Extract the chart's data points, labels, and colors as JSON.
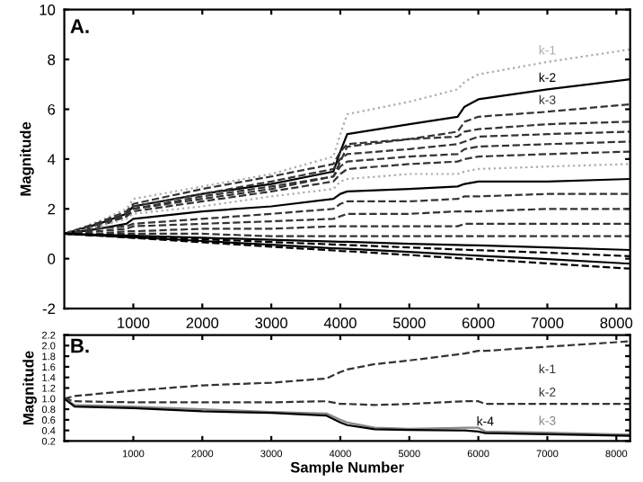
{
  "chart_data": [
    {
      "type": "line",
      "title": "A.",
      "ylabel": "Magnitude",
      "xlim": [
        0,
        8200
      ],
      "ylim": [
        -2,
        10
      ],
      "xticks": [
        1000,
        2000,
        3000,
        4000,
        5000,
        6000,
        7000,
        8000
      ],
      "yticks": [
        -2,
        0,
        2,
        4,
        6,
        8,
        10
      ],
      "grid": false,
      "legend": false,
      "x": [
        0,
        500,
        900,
        1000,
        2000,
        3000,
        3900,
        4000,
        4100,
        5000,
        5700,
        5800,
        6000,
        7000,
        8192
      ],
      "series": [
        {
          "name": "k-1",
          "color": "#aaaaaa",
          "line_style": "dotted",
          "values": [
            1.0,
            1.5,
            2.0,
            2.4,
            2.9,
            3.4,
            4.1,
            5.0,
            5.8,
            6.3,
            6.8,
            7.1,
            7.4,
            7.9,
            8.4
          ]
        },
        {
          "name": "k-2",
          "color": "#000000",
          "line_style": "solid",
          "values": [
            1.0,
            1.4,
            1.8,
            2.1,
            2.6,
            3.0,
            3.5,
            4.3,
            5.0,
            5.4,
            5.7,
            6.1,
            6.4,
            6.8,
            7.2
          ]
        },
        {
          "name": "k-3",
          "color": "#333333",
          "line_style": "dashed",
          "values": [
            1.0,
            1.3,
            1.7,
            2.0,
            2.4,
            2.8,
            3.3,
            3.9,
            4.5,
            4.8,
            5.1,
            5.5,
            5.7,
            5.9,
            6.2
          ]
        },
        {
          "color": "#333333",
          "line_style": "dashed",
          "values": [
            1.0,
            1.45,
            1.9,
            2.2,
            2.8,
            3.3,
            3.8,
            4.3,
            4.6,
            4.8,
            4.9,
            5.1,
            5.2,
            5.4,
            5.5
          ]
        },
        {
          "color": "#333333",
          "line_style": "dashed",
          "values": [
            1.0,
            1.4,
            1.8,
            2.1,
            2.6,
            3.1,
            3.6,
            4.0,
            4.2,
            4.4,
            4.6,
            4.7,
            4.9,
            5.0,
            5.1
          ]
        },
        {
          "color": "#333333",
          "line_style": "dashed",
          "values": [
            1.0,
            1.4,
            1.7,
            2.0,
            2.5,
            2.9,
            3.3,
            3.7,
            3.9,
            4.1,
            4.2,
            4.4,
            4.5,
            4.6,
            4.7
          ]
        },
        {
          "color": "#333333",
          "line_style": "dashed",
          "values": [
            1.0,
            1.3,
            1.7,
            1.9,
            2.3,
            2.7,
            3.1,
            3.4,
            3.6,
            3.8,
            3.9,
            4.0,
            4.1,
            4.2,
            4.3
          ]
        },
        {
          "color": "#aaaaaa",
          "line_style": "dotted",
          "values": [
            1.0,
            1.3,
            1.6,
            1.8,
            2.1,
            2.5,
            2.8,
            3.1,
            3.2,
            3.4,
            3.4,
            3.5,
            3.6,
            3.7,
            3.8
          ]
        },
        {
          "color": "#000000",
          "line_style": "solid",
          "values": [
            1.0,
            1.2,
            1.4,
            1.6,
            1.9,
            2.1,
            2.4,
            2.6,
            2.7,
            2.8,
            2.9,
            3.0,
            3.1,
            3.1,
            3.2
          ]
        },
        {
          "color": "#333333",
          "line_style": "dashed",
          "values": [
            1.0,
            1.2,
            1.3,
            1.4,
            1.6,
            1.8,
            2.0,
            2.2,
            2.3,
            2.3,
            2.4,
            2.5,
            2.5,
            2.6,
            2.6
          ]
        },
        {
          "color": "#333333",
          "line_style": "dashed",
          "values": [
            1.0,
            1.1,
            1.2,
            1.3,
            1.4,
            1.5,
            1.6,
            1.7,
            1.8,
            1.8,
            1.9,
            1.9,
            1.9,
            2.0,
            2.0
          ]
        },
        {
          "color": "#333333",
          "line_style": "dashed",
          "values": [
            1.0,
            1.0,
            1.1,
            1.1,
            1.2,
            1.2,
            1.3,
            1.3,
            1.3,
            1.3,
            1.3,
            1.4,
            1.4,
            1.4,
            1.4
          ]
        },
        {
          "color": "#333333",
          "line_style": "dashed",
          "values": [
            1.0,
            1.0,
            1.0,
            1.0,
            1.0,
            0.9,
            0.9,
            0.9,
            0.9,
            0.9,
            0.9,
            0.9,
            0.9,
            0.9,
            0.9
          ]
        },
        {
          "color": "#000000",
          "line_style": "solid",
          "values": [
            1.0,
            0.96,
            0.93,
            0.92,
            0.84,
            0.76,
            0.69,
            0.68,
            0.68,
            0.6,
            0.55,
            0.54,
            0.53,
            0.45,
            0.35
          ]
        },
        {
          "color": "#000000",
          "line_style": "dashed",
          "values": [
            1.0,
            0.95,
            0.9,
            0.89,
            0.78,
            0.67,
            0.57,
            0.56,
            0.55,
            0.45,
            0.37,
            0.36,
            0.34,
            0.24,
            0.1
          ]
        },
        {
          "color": "#000000",
          "line_style": "solid",
          "values": [
            1.0,
            0.93,
            0.87,
            0.86,
            0.71,
            0.56,
            0.42,
            0.41,
            0.4,
            0.27,
            0.16,
            0.15,
            0.12,
            -0.02,
            -0.2
          ]
        },
        {
          "color": "#000000",
          "line_style": "dashed",
          "values": [
            1.0,
            0.92,
            0.85,
            0.83,
            0.66,
            0.48,
            0.33,
            0.31,
            0.3,
            0.15,
            0.02,
            0.01,
            -0.02,
            -0.19,
            -0.4
          ]
        }
      ]
    },
    {
      "type": "line",
      "title": "B.",
      "xlabel": "Sample Number",
      "ylabel": "Magnitude",
      "xlim": [
        0,
        8200
      ],
      "ylim": [
        0.2,
        2.2
      ],
      "xticks": [
        1000,
        2000,
        3000,
        4000,
        5000,
        6000,
        7000,
        8000
      ],
      "yticks": [
        {
          "value": 0.2,
          "label": "0.2"
        },
        {
          "value": 0.4,
          "label": "0.4"
        },
        {
          "value": 0.6,
          "label": "0.6"
        },
        {
          "value": 0.8,
          "label": "0.8"
        },
        {
          "value": 1.0,
          "label": "1.0"
        },
        {
          "value": 1.2,
          "label": "1.2"
        },
        {
          "value": 1.4,
          "label": "1.4"
        },
        {
          "value": 1.6,
          "label": "1.6"
        },
        {
          "value": 1.8,
          "label": "1.8"
        },
        {
          "value": 2.0,
          "label": "2.0"
        },
        {
          "value": 2.2,
          "label": "2.2"
        }
      ],
      "grid": false,
      "legend": false,
      "x": [
        0,
        150,
        1000,
        2000,
        3000,
        3800,
        4000,
        4100,
        4500,
        5000,
        5800,
        6000,
        6100,
        7000,
        8192
      ],
      "series": [
        {
          "name": "k-1",
          "color": "#333333",
          "line_style": "dashed",
          "values": [
            1.0,
            1.05,
            1.15,
            1.25,
            1.3,
            1.38,
            1.5,
            1.55,
            1.65,
            1.72,
            1.85,
            1.9,
            1.9,
            1.98,
            2.08
          ]
        },
        {
          "name": "k-2",
          "color": "#333333",
          "line_style": "dashed",
          "values": [
            1.0,
            0.95,
            0.93,
            0.93,
            0.93,
            0.95,
            0.9,
            0.9,
            0.88,
            0.9,
            0.95,
            0.95,
            0.9,
            0.9,
            0.9
          ]
        },
        {
          "name": "k-3",
          "color": "#888888",
          "line_style": "solid",
          "values": [
            1.0,
            0.88,
            0.85,
            0.8,
            0.75,
            0.72,
            0.6,
            0.55,
            0.45,
            0.43,
            0.45,
            0.45,
            0.38,
            0.36,
            0.32
          ]
        },
        {
          "name": "k-4",
          "color": "#000000",
          "line_style": "solid",
          "values": [
            1.0,
            0.85,
            0.82,
            0.76,
            0.73,
            0.68,
            0.55,
            0.5,
            0.42,
            0.41,
            0.4,
            0.38,
            0.35,
            0.33,
            0.3
          ]
        }
      ]
    }
  ]
}
